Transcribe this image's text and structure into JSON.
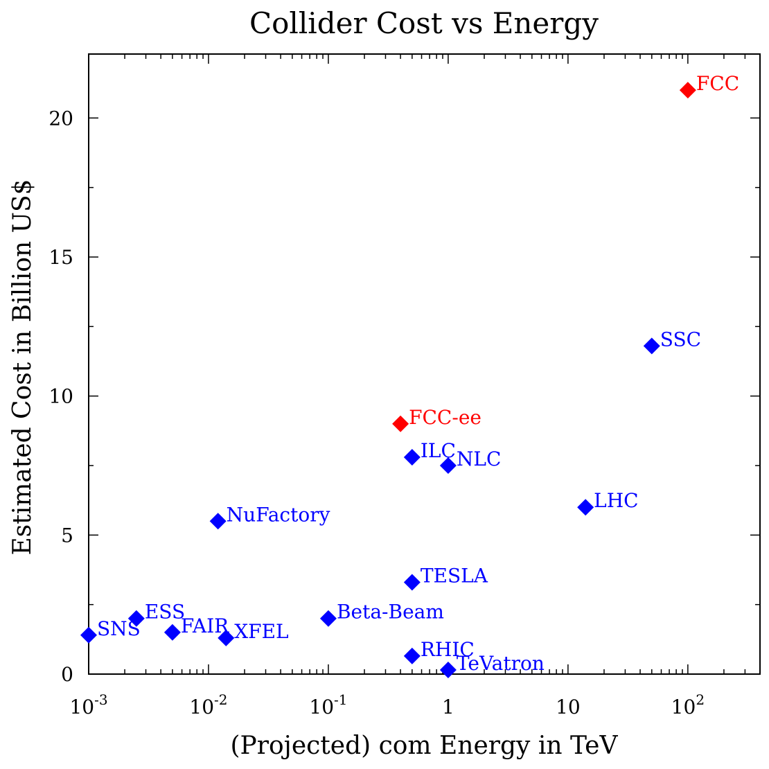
{
  "chart_data": {
    "type": "scatter",
    "title": "Collider Cost vs Energy",
    "xlabel": "(Projected) com Energy in TeV",
    "ylabel": "Estimated Cost in Billion US$",
    "x_scale": "log",
    "xlim": [
      0.001,
      400
    ],
    "ylim": [
      0,
      22.3
    ],
    "grid": false,
    "x_ticks": [
      {
        "value": 0.001,
        "base": "10",
        "exp": "-3"
      },
      {
        "value": 0.01,
        "base": "10",
        "exp": "-2"
      },
      {
        "value": 0.1,
        "base": "10",
        "exp": "-1"
      },
      {
        "value": 1,
        "base": "1",
        "exp": ""
      },
      {
        "value": 10,
        "base": "10",
        "exp": ""
      },
      {
        "value": 100,
        "base": "10",
        "exp": "2"
      }
    ],
    "y_ticks": [
      {
        "value": 0,
        "label": "0"
      },
      {
        "value": 5,
        "label": "5"
      },
      {
        "value": 10,
        "label": "10"
      },
      {
        "value": 15,
        "label": "15"
      },
      {
        "value": 20,
        "label": "20"
      }
    ],
    "series": [
      {
        "color": "#0000ff",
        "points": [
          {
            "label": "SNS",
            "x": 0.001,
            "y": 1.4
          },
          {
            "label": "ESS",
            "x": 0.0025,
            "y": 2.0
          },
          {
            "label": "FAIR",
            "x": 0.005,
            "y": 1.5
          },
          {
            "label": "XFEL",
            "x": 0.014,
            "y": 1.3
          },
          {
            "label": "NuFactory",
            "x": 0.012,
            "y": 5.5
          },
          {
            "label": "Beta-Beam",
            "x": 0.1,
            "y": 2.0
          },
          {
            "label": "ILC",
            "x": 0.5,
            "y": 7.8
          },
          {
            "label": "NLC",
            "x": 1.0,
            "y": 7.5
          },
          {
            "label": "TESLA",
            "x": 0.5,
            "y": 3.3
          },
          {
            "label": "RHIC",
            "x": 0.5,
            "y": 0.65
          },
          {
            "label": "TeVatron",
            "x": 1.0,
            "y": 0.15
          },
          {
            "label": "LHC",
            "x": 14,
            "y": 6.0
          },
          {
            "label": "SSC",
            "x": 50,
            "y": 11.8
          }
        ]
      },
      {
        "color": "#ff0000",
        "points": [
          {
            "label": "FCC-ee",
            "x": 0.4,
            "y": 9.0
          },
          {
            "label": "FCC",
            "x": 100,
            "y": 21.0
          }
        ]
      }
    ]
  }
}
